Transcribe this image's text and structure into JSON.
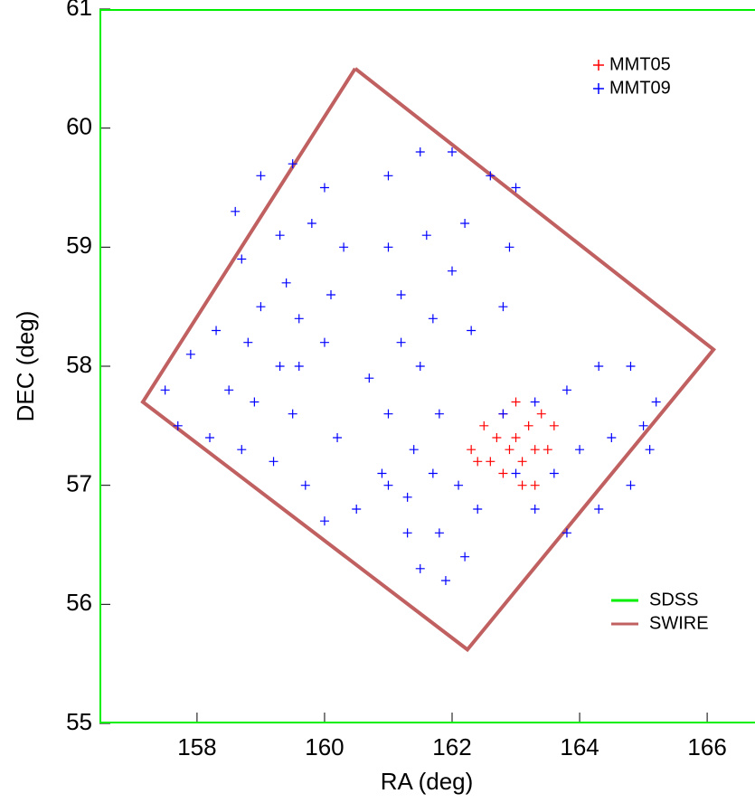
{
  "chart_data": {
    "type": "scatter",
    "x_label": "RA (deg)",
    "y_label": "DEC (deg)",
    "xlim": [
      156.47,
      166.75
    ],
    "ylim": [
      55,
      61
    ],
    "xticks": [
      158,
      160,
      162,
      164,
      166
    ],
    "yticks": [
      55,
      56,
      57,
      58,
      59,
      60,
      61
    ],
    "series": [
      {
        "name": "MMT05",
        "color": "#ff0000",
        "x": [
          162.3,
          162.5,
          162.6,
          162.8,
          162.8,
          163.0,
          163.0,
          163.1,
          163.2,
          163.3,
          163.4,
          163.5,
          163.6,
          162.9,
          162.7,
          163.1,
          162.4,
          163.3
        ],
        "y": [
          57.3,
          57.5,
          57.2,
          57.6,
          57.1,
          57.4,
          57.7,
          57.2,
          57.5,
          57.0,
          57.6,
          57.3,
          57.5,
          57.3,
          57.4,
          57.0,
          57.2,
          57.3
        ]
      },
      {
        "name": "MMT09",
        "color": "#0000ff",
        "x": [
          158.6,
          159.0,
          159.5,
          160.0,
          160.3,
          160.1,
          159.6,
          159.0,
          158.7,
          159.3,
          159.8,
          159.4,
          161.0,
          161.5,
          162.0,
          162.6,
          163.0,
          162.9,
          162.8,
          162.3,
          161.7,
          161.2,
          161.0,
          161.6,
          162.2,
          162.0,
          157.5,
          157.9,
          158.3,
          158.8,
          159.3,
          159.5,
          159.2,
          158.7,
          158.2,
          157.7,
          158.5,
          158.9,
          159.6,
          160.0,
          160.7,
          161.0,
          160.9,
          160.5,
          160.0,
          159.7,
          160.2,
          161.2,
          161.5,
          161.8,
          161.4,
          161.0,
          161.3,
          161.5,
          161.9,
          162.2,
          162.4,
          162.1,
          161.7,
          161.8,
          161.3,
          162.8,
          163.3,
          163.8,
          164.3,
          164.8,
          165.2,
          165.1,
          164.8,
          164.3,
          163.8,
          163.3,
          163.0,
          164.0,
          164.5,
          163.6,
          165.0
        ],
        "y": [
          59.3,
          59.6,
          59.7,
          59.5,
          59.0,
          58.6,
          58.4,
          58.5,
          58.9,
          59.1,
          59.2,
          58.7,
          59.6,
          59.8,
          59.8,
          59.6,
          59.5,
          59.0,
          58.5,
          58.3,
          58.4,
          58.6,
          59.0,
          59.1,
          59.2,
          58.8,
          57.8,
          58.1,
          58.3,
          58.2,
          58.0,
          57.6,
          57.2,
          57.3,
          57.4,
          57.5,
          57.8,
          57.7,
          58.0,
          58.2,
          57.9,
          57.6,
          57.1,
          56.8,
          56.7,
          57.0,
          57.4,
          58.2,
          58.0,
          57.6,
          57.3,
          57.0,
          56.6,
          56.3,
          56.2,
          56.4,
          56.8,
          57.0,
          57.1,
          56.6,
          56.9,
          57.6,
          57.7,
          57.8,
          58.0,
          58.0,
          57.7,
          57.3,
          57.0,
          56.8,
          56.6,
          56.8,
          57.1,
          57.3,
          57.4,
          57.1,
          57.5
        ]
      }
    ],
    "outlines": [
      {
        "name": "SDSS",
        "color": "#00ee00",
        "x": [
          167,
          156.47,
          156.47,
          167
        ],
        "y": [
          61,
          61,
          55,
          55
        ]
      },
      {
        "name": "SWIRE",
        "color": "#c06060",
        "x": [
          160.48,
          166.1,
          162.24,
          157.15,
          160.48
        ],
        "y": [
          60.5,
          58.14,
          55.62,
          57.7,
          60.5
        ]
      }
    ]
  }
}
